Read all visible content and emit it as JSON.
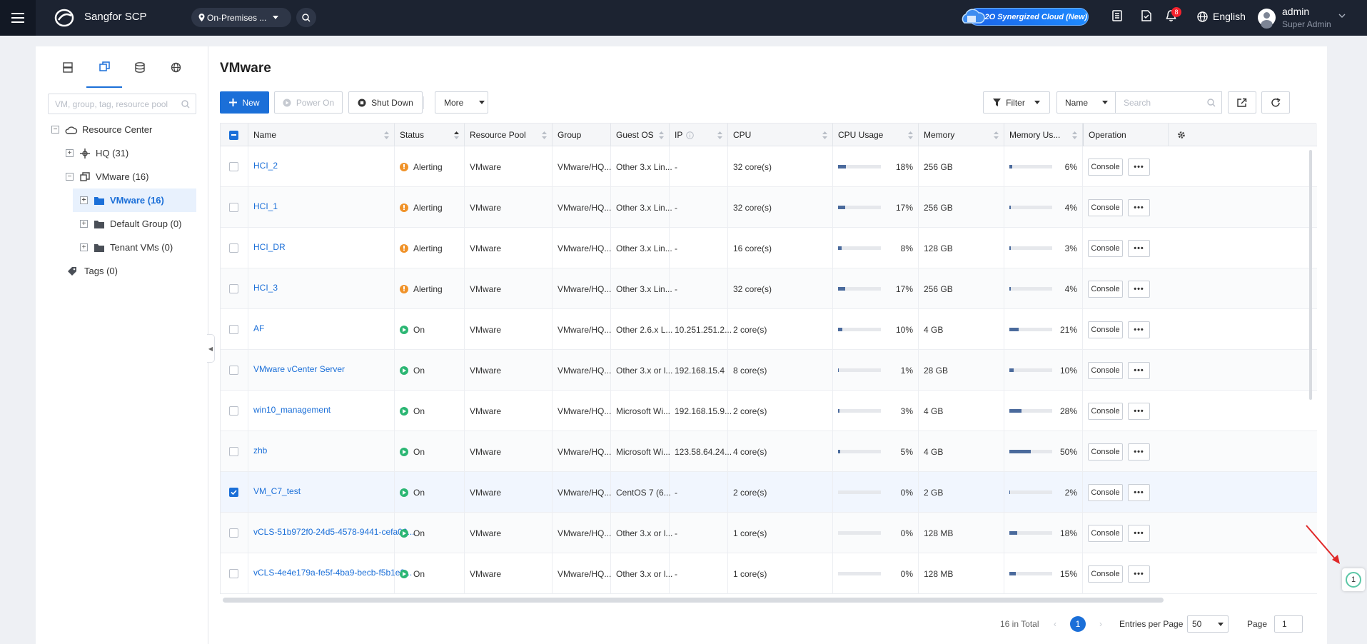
{
  "topbar": {
    "brand": "Sangfor SCP",
    "location": "On-Premises ...",
    "o2o_label": "O2O Synergized Cloud (New)",
    "notification_count": "8",
    "language": "English",
    "user_name": "admin",
    "user_role": "Super Admin"
  },
  "tree": {
    "search_placeholder": "VM, group, tag, resource pool",
    "nodes": [
      {
        "label": "Resource Center"
      },
      {
        "label": "HQ (31)"
      },
      {
        "label": "VMware (16)"
      },
      {
        "label": "VMware (16)"
      },
      {
        "label": "Default Group (0)"
      },
      {
        "label": "Tenant VMs (0)"
      },
      {
        "label": "Tags (0)"
      }
    ]
  },
  "page": {
    "title": "VMware"
  },
  "toolbar": {
    "new": "New",
    "power_on": "Power On",
    "shut_down": "Shut Down",
    "more": "More",
    "filter": "Filter",
    "search_field": "Name",
    "search_placeholder": "Search"
  },
  "table": {
    "columns": [
      "Name",
      "Status",
      "Resource Pool",
      "Group",
      "Guest OS",
      "IP",
      "CPU",
      "CPU Usage",
      "Memory",
      "Memory Us...",
      "Operation"
    ],
    "operation_label": "Console",
    "rows": [
      {
        "name": "HCI_2",
        "status": "Alerting",
        "pool": "VMware",
        "group": "VMware/HQ...",
        "os": "Other 3.x Lin...",
        "ip": "-",
        "cpu": "32 core(s)",
        "cpu_pct": "18%",
        "cpu_val": 18,
        "mem": "256 GB",
        "mem_pct": "6%",
        "mem_val": 6,
        "checked": false
      },
      {
        "name": "HCI_1",
        "status": "Alerting",
        "pool": "VMware",
        "group": "VMware/HQ...",
        "os": "Other 3.x Lin...",
        "ip": "-",
        "cpu": "32 core(s)",
        "cpu_pct": "17%",
        "cpu_val": 17,
        "mem": "256 GB",
        "mem_pct": "4%",
        "mem_val": 4,
        "checked": false
      },
      {
        "name": "HCI_DR",
        "status": "Alerting",
        "pool": "VMware",
        "group": "VMware/HQ...",
        "os": "Other 3.x Lin...",
        "ip": "-",
        "cpu": "16 core(s)",
        "cpu_pct": "8%",
        "cpu_val": 8,
        "mem": "128 GB",
        "mem_pct": "3%",
        "mem_val": 3,
        "checked": false
      },
      {
        "name": "HCI_3",
        "status": "Alerting",
        "pool": "VMware",
        "group": "VMware/HQ...",
        "os": "Other 3.x Lin...",
        "ip": "-",
        "cpu": "32 core(s)",
        "cpu_pct": "17%",
        "cpu_val": 17,
        "mem": "256 GB",
        "mem_pct": "4%",
        "mem_val": 4,
        "checked": false
      },
      {
        "name": "AF",
        "status": "On",
        "pool": "VMware",
        "group": "VMware/HQ...",
        "os": "Other 2.6.x L...",
        "ip": "10.251.251.2...",
        "cpu": "2 core(s)",
        "cpu_pct": "10%",
        "cpu_val": 10,
        "mem": "4 GB",
        "mem_pct": "21%",
        "mem_val": 21,
        "checked": false
      },
      {
        "name": "VMware vCenter Server",
        "status": "On",
        "pool": "VMware",
        "group": "VMware/HQ...",
        "os": "Other 3.x or l...",
        "ip": "192.168.15.4",
        "cpu": "8 core(s)",
        "cpu_pct": "1%",
        "cpu_val": 1,
        "mem": "28 GB",
        "mem_pct": "10%",
        "mem_val": 10,
        "checked": false
      },
      {
        "name": "win10_management",
        "status": "On",
        "pool": "VMware",
        "group": "VMware/HQ...",
        "os": "Microsoft Wi...",
        "ip": "192.168.15.9...",
        "cpu": "2 core(s)",
        "cpu_pct": "3%",
        "cpu_val": 3,
        "mem": "4 GB",
        "mem_pct": "28%",
        "mem_val": 28,
        "checked": false
      },
      {
        "name": "zhb",
        "status": "On",
        "pool": "VMware",
        "group": "VMware/HQ...",
        "os": "Microsoft Wi...",
        "ip": "123.58.64.24...",
        "cpu": "4 core(s)",
        "cpu_pct": "5%",
        "cpu_val": 5,
        "mem": "4 GB",
        "mem_pct": "50%",
        "mem_val": 50,
        "checked": false
      },
      {
        "name": "VM_C7_test",
        "status": "On",
        "pool": "VMware",
        "group": "VMware/HQ...",
        "os": "CentOS 7 (6...",
        "ip": "-",
        "cpu": "2 core(s)",
        "cpu_pct": "0%",
        "cpu_val": 0,
        "mem": "2 GB",
        "mem_pct": "2%",
        "mem_val": 2,
        "checked": true
      },
      {
        "name": "vCLS-51b972f0-24d5-4578-9441-cefa06...",
        "status": "On",
        "pool": "VMware",
        "group": "VMware/HQ...",
        "os": "Other 3.x or l...",
        "ip": "-",
        "cpu": "1 core(s)",
        "cpu_pct": "0%",
        "cpu_val": 0,
        "mem": "128 MB",
        "mem_pct": "18%",
        "mem_val": 18,
        "checked": false
      },
      {
        "name": "vCLS-4e4e179a-fe5f-4ba9-becb-f5b1e8...",
        "status": "On",
        "pool": "VMware",
        "group": "VMware/HQ...",
        "os": "Other 3.x or l...",
        "ip": "-",
        "cpu": "1 core(s)",
        "cpu_pct": "0%",
        "cpu_val": 0,
        "mem": "128 MB",
        "mem_pct": "15%",
        "mem_val": 15,
        "checked": false
      }
    ]
  },
  "pagination": {
    "total": "16 in Total",
    "current_page": "1",
    "per_page_label": "Entries per Page",
    "per_page": "50",
    "page_label": "Page",
    "page_input": "1"
  },
  "floating": {
    "count": "1"
  },
  "colors": {
    "primary": "#1b6fd8",
    "alerting": "#f0932a",
    "on": "#2bb673",
    "topbar": "#1c2331"
  }
}
